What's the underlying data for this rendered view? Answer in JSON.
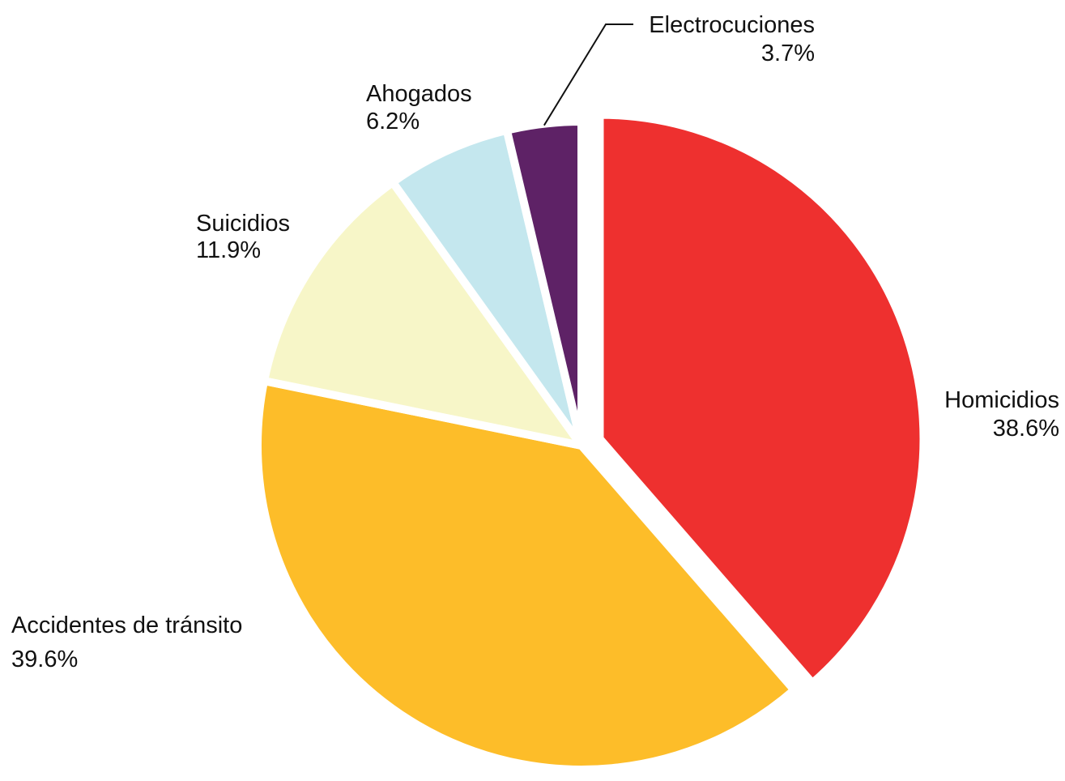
{
  "chart_data": {
    "type": "pie",
    "title": "",
    "slices": [
      {
        "label": "Homicidios",
        "value": 38.6,
        "value_label": "38.6%",
        "color": "#EE302F",
        "exploded": true
      },
      {
        "label": "Accidentes de tránsito",
        "value": 39.6,
        "value_label": "39.6%",
        "color": "#FDBD29",
        "exploded": false
      },
      {
        "label": "Suicidios",
        "value": 11.9,
        "value_label": "11.9%",
        "color": "#F7F6C8",
        "exploded": false
      },
      {
        "label": "Ahogados",
        "value": 6.2,
        "value_label": "6.2%",
        "color": "#C4E7EE",
        "exploded": false
      },
      {
        "label": "Electrocuciones",
        "value": 3.7,
        "value_label": "3.7%",
        "color": "#5E2266",
        "exploded": false
      }
    ],
    "start_angle": "12 o'clock",
    "direction": "clockwise",
    "legend": "none"
  }
}
